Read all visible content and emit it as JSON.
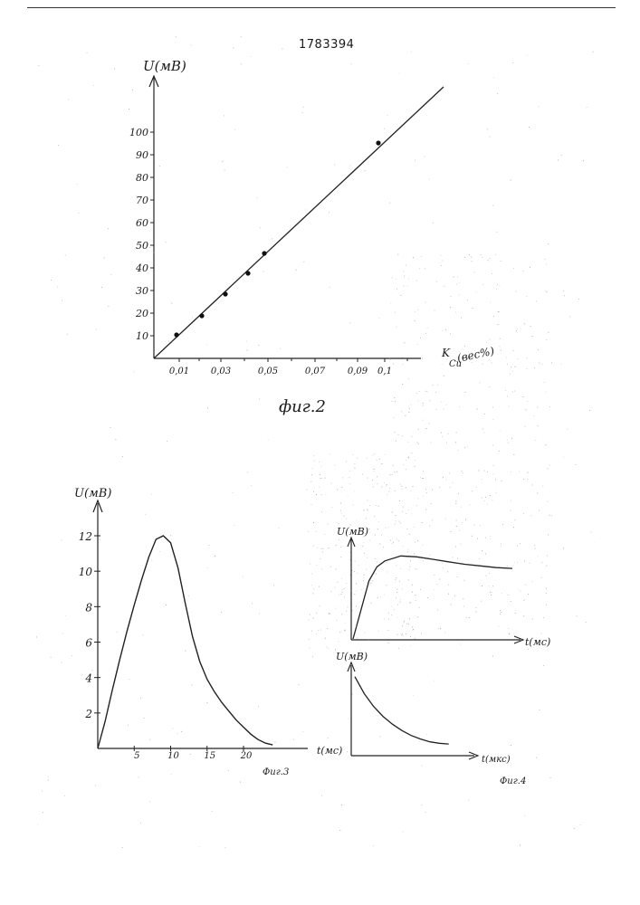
{
  "document": {
    "patent_number": "1783394"
  },
  "fig2": {
    "caption": "фиг.2",
    "ylabel": "U(мВ)",
    "xlabel_main": "K",
    "xlabel_sub": "Cu",
    "xlabel_unit": "(вес%)"
  },
  "fig3": {
    "caption": "Фиг.3",
    "ylabel": "U(мВ)",
    "xlabel": "t(мс)"
  },
  "fig4": {
    "caption": "Фиг.4",
    "top_ylabel": "U(мВ)",
    "top_xlabel": "t(мс)",
    "bottom_ylabel": "U(мВ)",
    "bottom_xlabel": "t(мкс)"
  },
  "chart_data": [
    {
      "name": "fig2",
      "type": "scatter",
      "y_ticks": [
        "10",
        "20",
        "30",
        "40",
        "50",
        "60",
        "70",
        "80",
        "90",
        "100"
      ],
      "x_ticks": [
        "0,01",
        "0,03",
        "0,05",
        "0,07",
        "0,09",
        "0,1"
      ],
      "points": [
        {
          "x": 0.01,
          "y": 10
        },
        {
          "x": 0.02,
          "y": 18
        },
        {
          "x": 0.03,
          "y": 28
        },
        {
          "x": 0.04,
          "y": 37
        },
        {
          "x": 0.047,
          "y": 46
        },
        {
          "x": 0.095,
          "y": 94
        }
      ],
      "fit_line": [
        {
          "x": 0.0,
          "y": 0
        },
        {
          "x": 0.12,
          "y": 118
        }
      ],
      "xlim": [
        0,
        0.12
      ],
      "ylim": [
        0,
        120
      ]
    },
    {
      "name": "fig3",
      "type": "line",
      "y_ticks": [
        2,
        4,
        6,
        8,
        10,
        12
      ],
      "x_ticks": [
        5,
        10,
        15,
        20
      ],
      "x": [
        0,
        1,
        2,
        3,
        4,
        5,
        6,
        7,
        8,
        9,
        10,
        11,
        12,
        13,
        14,
        15,
        16,
        17,
        18,
        19,
        20,
        21,
        22,
        23,
        24
      ],
      "y": [
        0,
        1.5,
        3.3,
        5.0,
        6.6,
        8.1,
        9.5,
        10.8,
        11.8,
        12.0,
        11.6,
        10.2,
        8.2,
        6.3,
        4.9,
        3.9,
        3.2,
        2.6,
        2.1,
        1.6,
        1.2,
        0.8,
        0.5,
        0.3,
        0.2
      ],
      "xlim": [
        0,
        27
      ],
      "ylim": [
        0,
        13.5
      ]
    },
    {
      "name": "fig4-top",
      "type": "line",
      "x": [
        0,
        0.05,
        0.1,
        0.15,
        0.2,
        0.3,
        0.4,
        0.5,
        0.6,
        0.7,
        0.8,
        0.9,
        1.0
      ],
      "y": [
        0,
        0.35,
        0.7,
        0.87,
        0.94,
        1.0,
        0.99,
        0.96,
        0.93,
        0.9,
        0.88,
        0.86,
        0.85
      ],
      "xlim": [
        0,
        1.25
      ],
      "ylim": [
        0,
        1.2
      ]
    },
    {
      "name": "fig4-bottom",
      "type": "line",
      "x": [
        0,
        0.1,
        0.2,
        0.3,
        0.4,
        0.5,
        0.6,
        0.7,
        0.8,
        0.9,
        1.0
      ],
      "y": [
        1.0,
        0.76,
        0.58,
        0.44,
        0.33,
        0.24,
        0.17,
        0.12,
        0.08,
        0.06,
        0.05
      ],
      "xlim": [
        0,
        1.35
      ],
      "ylim": [
        0,
        1.15
      ]
    }
  ]
}
